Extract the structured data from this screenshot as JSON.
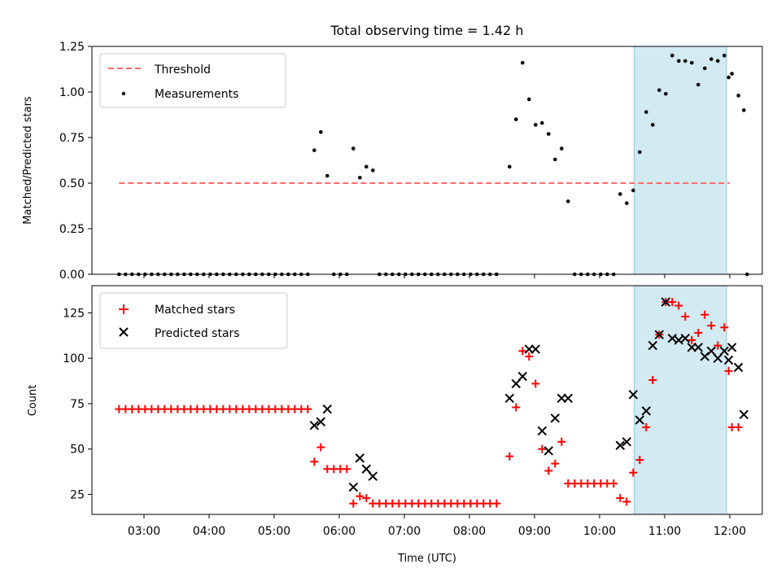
{
  "chart_data": [
    {
      "type": "scatter",
      "title": "Total observing time = 1.42 h",
      "ylabel": "Matched/Predicted stars",
      "xlabel": "",
      "x_axis": "Time (UTC)",
      "xlim": [
        "02:12",
        "12:30"
      ],
      "ylim": [
        0,
        1.25
      ],
      "yticks": [
        0.0,
        0.25,
        0.5,
        0.75,
        1.0,
        1.25
      ],
      "ytick_labels": [
        "0.00",
        "0.25",
        "0.50",
        "0.75",
        "1.00",
        "1.25"
      ],
      "grid": false,
      "legend_position": "top-left",
      "highlight_span": {
        "start": "10:32",
        "end": "11:57",
        "color": "#add8e6"
      },
      "threshold": {
        "name": "Threshold",
        "y": 0.5,
        "x_start": "02:37",
        "x_end": "12:00",
        "color": "#ff6b6b",
        "style": "dashed"
      },
      "series": [
        {
          "name": "Measurements",
          "color": "#000000",
          "points": [
            [
              "02:37",
              0
            ],
            [
              "02:43",
              0
            ],
            [
              "02:49",
              0
            ],
            [
              "02:55",
              0
            ],
            [
              "03:01",
              0
            ],
            [
              "03:07",
              0
            ],
            [
              "03:13",
              0
            ],
            [
              "03:19",
              0
            ],
            [
              "03:25",
              0
            ],
            [
              "03:31",
              0
            ],
            [
              "03:37",
              0
            ],
            [
              "03:43",
              0
            ],
            [
              "03:49",
              0
            ],
            [
              "03:55",
              0
            ],
            [
              "04:01",
              0
            ],
            [
              "04:07",
              0
            ],
            [
              "04:13",
              0
            ],
            [
              "04:19",
              0
            ],
            [
              "04:25",
              0
            ],
            [
              "04:31",
              0
            ],
            [
              "04:37",
              0
            ],
            [
              "04:43",
              0
            ],
            [
              "04:49",
              0
            ],
            [
              "04:55",
              0
            ],
            [
              "05:01",
              0
            ],
            [
              "05:07",
              0
            ],
            [
              "05:13",
              0
            ],
            [
              "05:19",
              0
            ],
            [
              "05:25",
              0
            ],
            [
              "05:31",
              0
            ],
            [
              "05:37",
              0.68
            ],
            [
              "05:43",
              0.78
            ],
            [
              "05:49",
              0.54
            ],
            [
              "05:55",
              0
            ],
            [
              "06:01",
              0
            ],
            [
              "06:07",
              0
            ],
            [
              "06:13",
              0.69
            ],
            [
              "06:19",
              0.53
            ],
            [
              "06:25",
              0.59
            ],
            [
              "06:31",
              0.57
            ],
            [
              "06:37",
              0
            ],
            [
              "06:43",
              0
            ],
            [
              "06:49",
              0
            ],
            [
              "06:55",
              0
            ],
            [
              "07:01",
              0
            ],
            [
              "07:07",
              0
            ],
            [
              "07:13",
              0
            ],
            [
              "07:19",
              0
            ],
            [
              "07:25",
              0
            ],
            [
              "07:31",
              0
            ],
            [
              "07:37",
              0
            ],
            [
              "07:43",
              0
            ],
            [
              "07:49",
              0
            ],
            [
              "07:55",
              0
            ],
            [
              "08:01",
              0
            ],
            [
              "08:07",
              0
            ],
            [
              "08:13",
              0
            ],
            [
              "08:19",
              0
            ],
            [
              "08:25",
              0
            ],
            [
              "08:37",
              0.59
            ],
            [
              "08:43",
              0.85
            ],
            [
              "08:49",
              1.16
            ],
            [
              "08:55",
              0.96
            ],
            [
              "09:01",
              0.82
            ],
            [
              "09:07",
              0.83
            ],
            [
              "09:13",
              0.77
            ],
            [
              "09:19",
              0.63
            ],
            [
              "09:25",
              0.69
            ],
            [
              "09:31",
              0.4
            ],
            [
              "09:37",
              0
            ],
            [
              "09:43",
              0
            ],
            [
              "09:49",
              0
            ],
            [
              "09:55",
              0
            ],
            [
              "10:01",
              0
            ],
            [
              "10:07",
              0
            ],
            [
              "10:13",
              0
            ],
            [
              "10:19",
              0.44
            ],
            [
              "10:25",
              0.39
            ],
            [
              "10:31",
              0.46
            ],
            [
              "10:37",
              0.67
            ],
            [
              "10:43",
              0.89
            ],
            [
              "10:49",
              0.82
            ],
            [
              "10:55",
              1.01
            ],
            [
              "11:01",
              0.99
            ],
            [
              "11:07",
              1.2
            ],
            [
              "11:13",
              1.17
            ],
            [
              "11:19",
              1.17
            ],
            [
              "11:25",
              1.16
            ],
            [
              "11:31",
              1.04
            ],
            [
              "11:37",
              1.13
            ],
            [
              "11:43",
              1.18
            ],
            [
              "11:49",
              1.17
            ],
            [
              "11:55",
              1.2
            ],
            [
              "11:59",
              1.08
            ],
            [
              "12:02",
              1.1
            ],
            [
              "12:08",
              0.98
            ],
            [
              "12:13",
              0.9
            ],
            [
              "12:16",
              0
            ]
          ]
        }
      ]
    },
    {
      "type": "scatter",
      "title": "",
      "ylabel": "Count",
      "xlabel": "Time (UTC)",
      "xlim": [
        "02:12",
        "12:30"
      ],
      "xticks": [
        "03:00",
        "04:00",
        "05:00",
        "06:00",
        "07:00",
        "08:00",
        "09:00",
        "10:00",
        "11:00",
        "12:00"
      ],
      "ylim": [
        14,
        140
      ],
      "yticks": [
        25,
        50,
        75,
        100,
        125
      ],
      "grid": false,
      "legend_position": "top-left",
      "highlight_span": {
        "start": "10:32",
        "end": "11:57",
        "color": "#add8e6"
      },
      "series": [
        {
          "name": "Matched stars",
          "marker": "+",
          "color": "#ff0000",
          "points": [
            [
              "02:37",
              72
            ],
            [
              "02:43",
              72
            ],
            [
              "02:49",
              72
            ],
            [
              "02:55",
              72
            ],
            [
              "03:01",
              72
            ],
            [
              "03:07",
              72
            ],
            [
              "03:13",
              72
            ],
            [
              "03:19",
              72
            ],
            [
              "03:25",
              72
            ],
            [
              "03:31",
              72
            ],
            [
              "03:37",
              72
            ],
            [
              "03:43",
              72
            ],
            [
              "03:49",
              72
            ],
            [
              "03:55",
              72
            ],
            [
              "04:01",
              72
            ],
            [
              "04:07",
              72
            ],
            [
              "04:13",
              72
            ],
            [
              "04:19",
              72
            ],
            [
              "04:25",
              72
            ],
            [
              "04:31",
              72
            ],
            [
              "04:37",
              72
            ],
            [
              "04:43",
              72
            ],
            [
              "04:49",
              72
            ],
            [
              "04:55",
              72
            ],
            [
              "05:01",
              72
            ],
            [
              "05:07",
              72
            ],
            [
              "05:13",
              72
            ],
            [
              "05:19",
              72
            ],
            [
              "05:25",
              72
            ],
            [
              "05:31",
              72
            ],
            [
              "05:37",
              43
            ],
            [
              "05:43",
              51
            ],
            [
              "05:49",
              39
            ],
            [
              "05:55",
              39
            ],
            [
              "06:01",
              39
            ],
            [
              "06:07",
              39
            ],
            [
              "06:13",
              20
            ],
            [
              "06:19",
              24
            ],
            [
              "06:25",
              23
            ],
            [
              "06:31",
              20
            ],
            [
              "06:37",
              20
            ],
            [
              "06:43",
              20
            ],
            [
              "06:49",
              20
            ],
            [
              "06:55",
              20
            ],
            [
              "07:01",
              20
            ],
            [
              "07:07",
              20
            ],
            [
              "07:13",
              20
            ],
            [
              "07:19",
              20
            ],
            [
              "07:25",
              20
            ],
            [
              "07:31",
              20
            ],
            [
              "07:37",
              20
            ],
            [
              "07:43",
              20
            ],
            [
              "07:49",
              20
            ],
            [
              "07:55",
              20
            ],
            [
              "08:01",
              20
            ],
            [
              "08:07",
              20
            ],
            [
              "08:13",
              20
            ],
            [
              "08:19",
              20
            ],
            [
              "08:25",
              20
            ],
            [
              "08:37",
              46
            ],
            [
              "08:43",
              73
            ],
            [
              "08:49",
              104
            ],
            [
              "08:55",
              101
            ],
            [
              "09:01",
              86
            ],
            [
              "09:07",
              50
            ],
            [
              "09:13",
              38
            ],
            [
              "09:19",
              42
            ],
            [
              "09:25",
              54
            ],
            [
              "09:31",
              31
            ],
            [
              "09:37",
              31
            ],
            [
              "09:43",
              31
            ],
            [
              "09:49",
              31
            ],
            [
              "09:55",
              31
            ],
            [
              "10:01",
              31
            ],
            [
              "10:07",
              31
            ],
            [
              "10:13",
              31
            ],
            [
              "10:19",
              23
            ],
            [
              "10:25",
              21
            ],
            [
              "10:31",
              37
            ],
            [
              "10:37",
              44
            ],
            [
              "10:43",
              62
            ],
            [
              "10:49",
              88
            ],
            [
              "10:55",
              113
            ],
            [
              "11:01",
              131
            ],
            [
              "11:07",
              131
            ],
            [
              "11:13",
              129
            ],
            [
              "11:19",
              123
            ],
            [
              "11:25",
              110
            ],
            [
              "11:31",
              114
            ],
            [
              "11:37",
              124
            ],
            [
              "11:43",
              118
            ],
            [
              "11:49",
              107
            ],
            [
              "11:55",
              117
            ],
            [
              "11:59",
              93
            ],
            [
              "12:02",
              62
            ],
            [
              "12:08",
              62
            ]
          ]
        },
        {
          "name": "Predicted stars",
          "marker": "x",
          "color": "#000000",
          "points": [
            [
              "05:37",
              63
            ],
            [
              "05:43",
              65
            ],
            [
              "05:49",
              72
            ],
            [
              "06:13",
              29
            ],
            [
              "06:19",
              45
            ],
            [
              "06:25",
              39
            ],
            [
              "06:31",
              35
            ],
            [
              "08:37",
              78
            ],
            [
              "08:43",
              86
            ],
            [
              "08:49",
              90
            ],
            [
              "08:55",
              105
            ],
            [
              "09:01",
              105
            ],
            [
              "09:07",
              60
            ],
            [
              "09:13",
              49
            ],
            [
              "09:19",
              67
            ],
            [
              "09:25",
              78
            ],
            [
              "09:31",
              78
            ],
            [
              "10:19",
              52
            ],
            [
              "10:25",
              54
            ],
            [
              "10:31",
              80
            ],
            [
              "10:37",
              66
            ],
            [
              "10:43",
              71
            ],
            [
              "10:49",
              107
            ],
            [
              "10:55",
              113
            ],
            [
              "11:01",
              131
            ],
            [
              "11:07",
              111
            ],
            [
              "11:13",
              110
            ],
            [
              "11:19",
              111
            ],
            [
              "11:25",
              106
            ],
            [
              "11:31",
              106
            ],
            [
              "11:37",
              101
            ],
            [
              "11:43",
              104
            ],
            [
              "11:49",
              100
            ],
            [
              "11:55",
              104
            ],
            [
              "11:59",
              99
            ],
            [
              "12:02",
              106
            ],
            [
              "12:08",
              95
            ],
            [
              "12:13",
              69
            ]
          ]
        }
      ]
    }
  ]
}
